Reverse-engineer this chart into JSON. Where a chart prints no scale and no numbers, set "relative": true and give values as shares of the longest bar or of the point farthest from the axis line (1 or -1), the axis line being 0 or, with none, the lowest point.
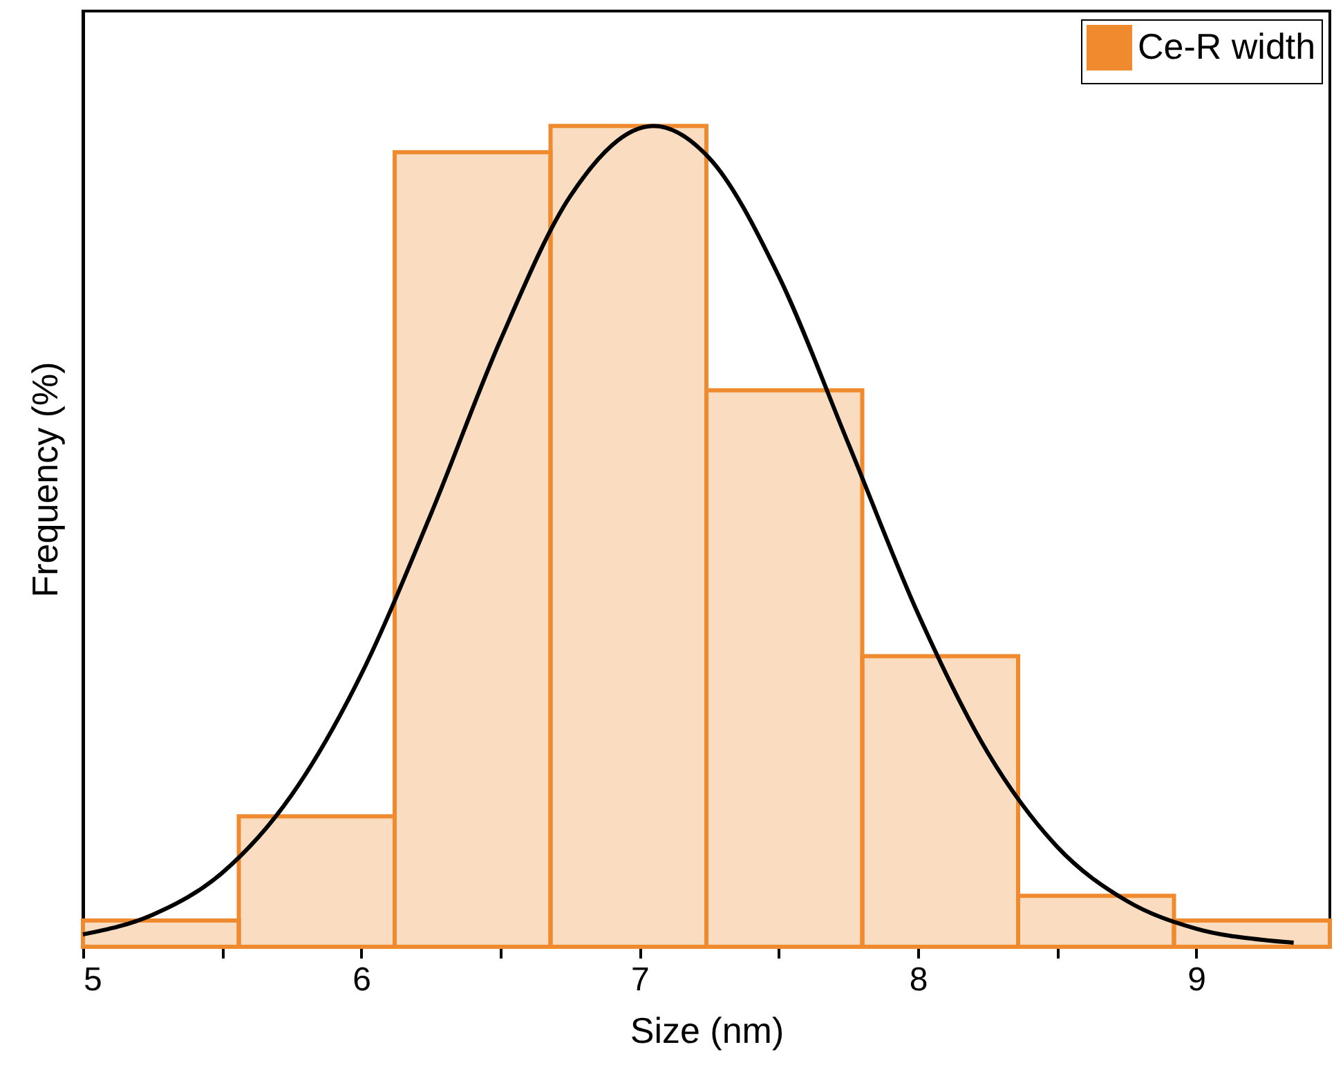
{
  "chart_data": {
    "type": "histogram",
    "xlabel": "Size (nm)",
    "ylabel": "Frequency (%)",
    "relative": true,
    "bins": [
      5,
      5.56,
      6.12,
      6.68,
      7.24,
      7.8,
      8.36,
      8.92,
      9.48
    ],
    "series": [
      {
        "name": "Ce-R width",
        "color": "#ef8a2f",
        "values": [
          0.032,
          0.159,
          0.968,
          1,
          0.678,
          0.354,
          0.062,
          0.032
        ]
      },
      {
        "type": "line",
        "color": "#000000",
        "x": [
          5,
          5.25,
          5.5,
          5.75,
          6,
          6.25,
          6.5,
          6.75,
          7.05,
          7.25,
          7.5,
          7.75,
          8,
          8.25,
          8.5,
          8.75,
          9,
          9.25,
          9.35
        ],
        "values": [
          0.015,
          0.039,
          0.09,
          0.185,
          0.332,
          0.527,
          0.739,
          0.914,
          1,
          0.961,
          0.817,
          0.613,
          0.406,
          0.237,
          0.122,
          0.056,
          0.022,
          0.008,
          0.005
        ]
      }
    ],
    "xlim": [
      5,
      9.48
    ],
    "xticks": [
      5,
      {
        "value": 5.5,
        "label": null
      },
      6,
      {
        "value": 6.5,
        "label": null
      },
      7,
      {
        "value": 7.5,
        "label": null
      },
      8,
      {
        "value": 8.5,
        "label": null
      },
      9
    ],
    "grid": false,
    "legend": "top right"
  }
}
